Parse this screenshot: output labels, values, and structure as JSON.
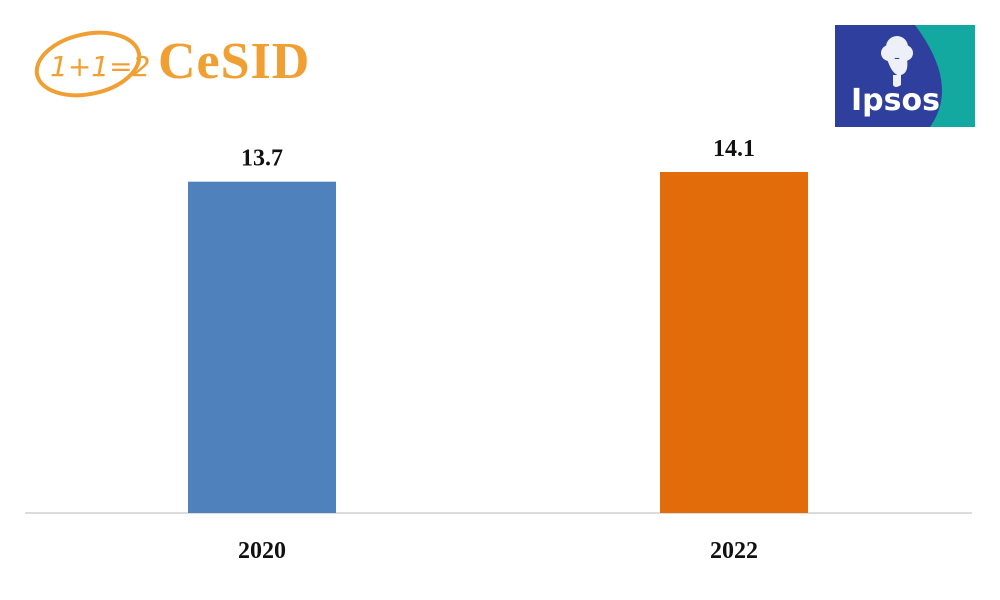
{
  "logos": {
    "cesid": {
      "mark_text": "1+1=2",
      "wordmark": "CeSID",
      "color": "#f0a033"
    },
    "ipsos": {
      "text": "Ipsos",
      "blue": "#2e3f9e",
      "teal": "#14a9a0"
    }
  },
  "chart_data": {
    "type": "bar",
    "categories": [
      "2020",
      "2022"
    ],
    "values": [
      13.7,
      14.1
    ],
    "value_labels": [
      "13.7",
      "14.1"
    ],
    "colors": [
      "#4f81bd",
      "#e36c0a"
    ],
    "ylim": [
      0,
      15
    ],
    "grid": false,
    "title": "",
    "xlabel": "",
    "ylabel": ""
  }
}
